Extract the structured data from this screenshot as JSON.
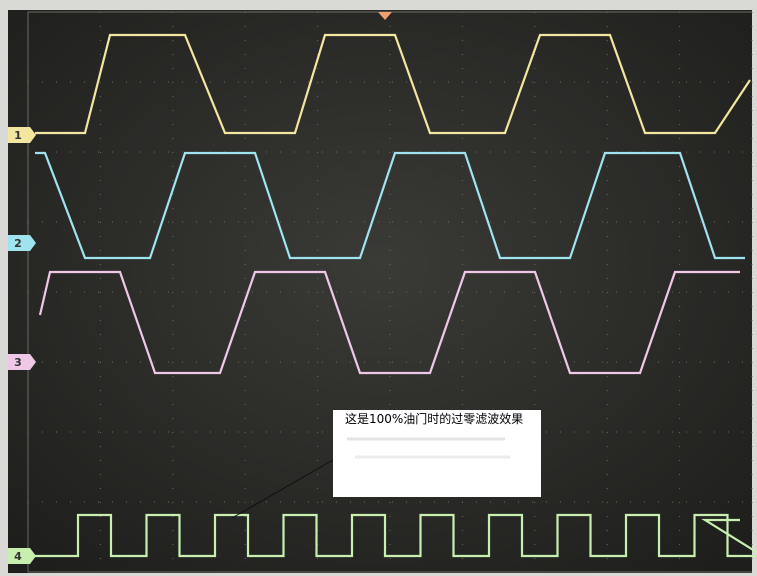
{
  "channels": [
    {
      "label": "1"
    },
    {
      "label": "2"
    },
    {
      "label": "3"
    },
    {
      "label": "4"
    }
  ],
  "annotation": {
    "text": "这是100%油门时的过零滤波效果"
  }
}
